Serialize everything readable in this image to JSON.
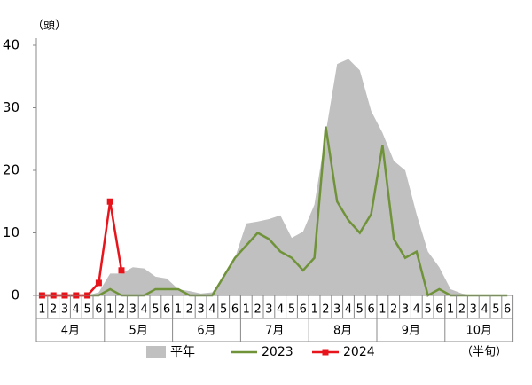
{
  "chart_data": {
    "type": "line",
    "y_label": "（頭）",
    "x_label": "（半旬）",
    "categories": [
      "1",
      "2",
      "3",
      "4",
      "5",
      "6",
      "1",
      "2",
      "3",
      "4",
      "5",
      "6",
      "1",
      "2",
      "3",
      "4",
      "5",
      "6",
      "1",
      "2",
      "3",
      "4",
      "5",
      "6",
      "1",
      "2",
      "3",
      "4",
      "5",
      "6",
      "1",
      "2",
      "3",
      "4",
      "5",
      "6",
      "1",
      "2",
      "3",
      "4",
      "5",
      "6"
    ],
    "months": [
      "4月",
      "5月",
      "6月",
      "7月",
      "8月",
      "9月",
      "10月"
    ],
    "series": [
      {
        "name": "平年",
        "kind": "area",
        "color": "#c0c0c0",
        "values": [
          0,
          0,
          0,
          0,
          0,
          0.5,
          3.5,
          3.5,
          4.5,
          4.3,
          3,
          2.7,
          1,
          0.7,
          0.3,
          0.5,
          3,
          6,
          11.5,
          11.8,
          12.2,
          12.8,
          9.2,
          10.2,
          14.5,
          26,
          37,
          37.8,
          36,
          29.5,
          26,
          21.5,
          20,
          13,
          7,
          4.5,
          1,
          0.3,
          0,
          0,
          0,
          0
        ]
      },
      {
        "name": "2023",
        "kind": "line",
        "color": "#70933a",
        "values": [
          0,
          0,
          0,
          0,
          0,
          0,
          1,
          0,
          0,
          0,
          1,
          1,
          1,
          0,
          0,
          0,
          3,
          6,
          8,
          10,
          9,
          7,
          6,
          4,
          6,
          27,
          15,
          12,
          10,
          13,
          24,
          9,
          6,
          7,
          0,
          1,
          0,
          0,
          0,
          0,
          0,
          0
        ]
      },
      {
        "name": "2024",
        "kind": "marker-line",
        "color": "#e8141b",
        "values": [
          0,
          0,
          0,
          0,
          0,
          2,
          15,
          4,
          null,
          null,
          null,
          null,
          null,
          null,
          null,
          null,
          null,
          null,
          null,
          null,
          null,
          null,
          null,
          null,
          null,
          null,
          null,
          null,
          null,
          null,
          null,
          null,
          null,
          null,
          null,
          null,
          null,
          null,
          null,
          null,
          null,
          null
        ]
      }
    ],
    "ylim": [
      0,
      40
    ],
    "yticks": [
      0,
      10,
      20,
      30,
      40
    ]
  }
}
